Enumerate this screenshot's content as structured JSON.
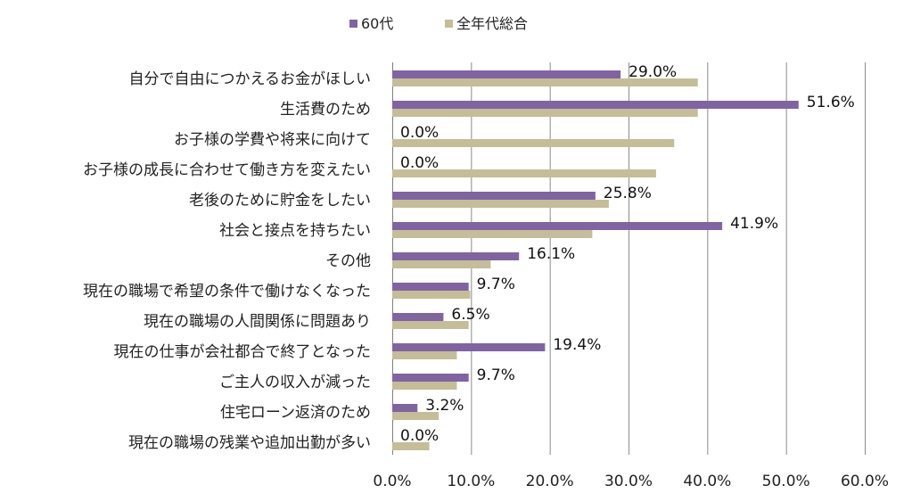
{
  "chart_data": {
    "type": "bar",
    "orientation": "horizontal",
    "categories": [
      "自分で自由につかえるお金がほしい",
      "生活費のため",
      "お子様の学費や将来に向けて",
      "お子様の成長に合わせて働き方を変えたい",
      "老後のために貯金をしたい",
      "社会と接点を持ちたい",
      "その他",
      "現在の職場で希望の条件で働けなくなった",
      "現在の職場の人間関係に問題あり",
      "現在の仕事が会社都合で終了となった",
      "ご主人の収入が減った",
      "住宅ローン返済のため",
      "現在の職場の残業や追加出勤が多い"
    ],
    "series": [
      {
        "name": "60代",
        "color": "#8064a2",
        "values": [
          29.0,
          51.6,
          0.0,
          0.0,
          25.8,
          41.9,
          16.1,
          9.7,
          6.5,
          19.4,
          9.7,
          3.2,
          0.0
        ],
        "data_labels": [
          "29.0%",
          "51.6%",
          "0.0%",
          "0.0%",
          "25.8%",
          "41.9%",
          "16.1%",
          "9.7%",
          "6.5%",
          "19.4%",
          "9.7%",
          "3.2%",
          "0.0%"
        ]
      },
      {
        "name": "全年代総合",
        "color": "#c4bd97",
        "values": [
          38.8,
          38.8,
          35.8,
          33.5,
          27.5,
          25.4,
          12.5,
          9.9,
          9.7,
          8.2,
          8.2,
          5.9,
          4.7
        ]
      }
    ],
    "xlim": [
      0,
      60
    ],
    "x_ticks": [
      0,
      10,
      20,
      30,
      40,
      50,
      60
    ],
    "x_tick_labels": [
      "0.0%",
      "10.0%",
      "20.0%",
      "30.0%",
      "40.0%",
      "50.0%",
      "60.0%"
    ],
    "grid": "vertical",
    "legend_position": "top-center"
  }
}
